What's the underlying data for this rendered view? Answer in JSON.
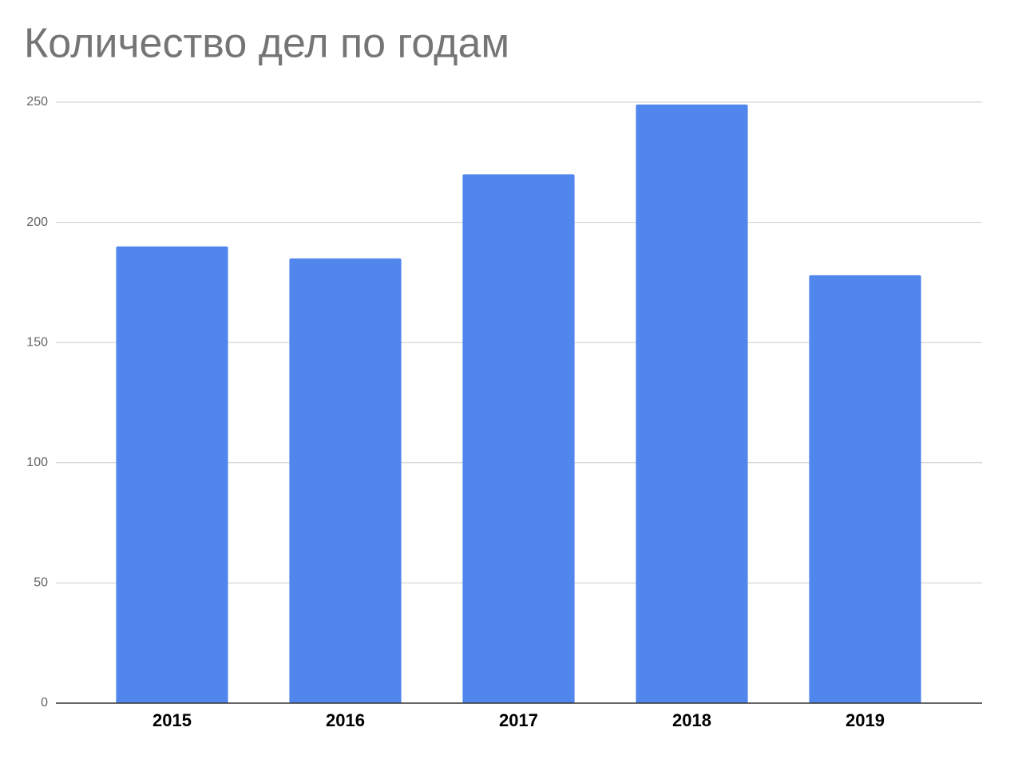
{
  "chart_data": {
    "type": "bar",
    "title": "Количество дел по годам",
    "categories": [
      "2015",
      "2016",
      "2017",
      "2018",
      "2019"
    ],
    "values": [
      190,
      185,
      220,
      249,
      178
    ],
    "color": "#5186ec",
    "ylim": [
      0,
      250
    ],
    "yticks": [
      0,
      50,
      100,
      150,
      200,
      250
    ],
    "grid": true
  }
}
